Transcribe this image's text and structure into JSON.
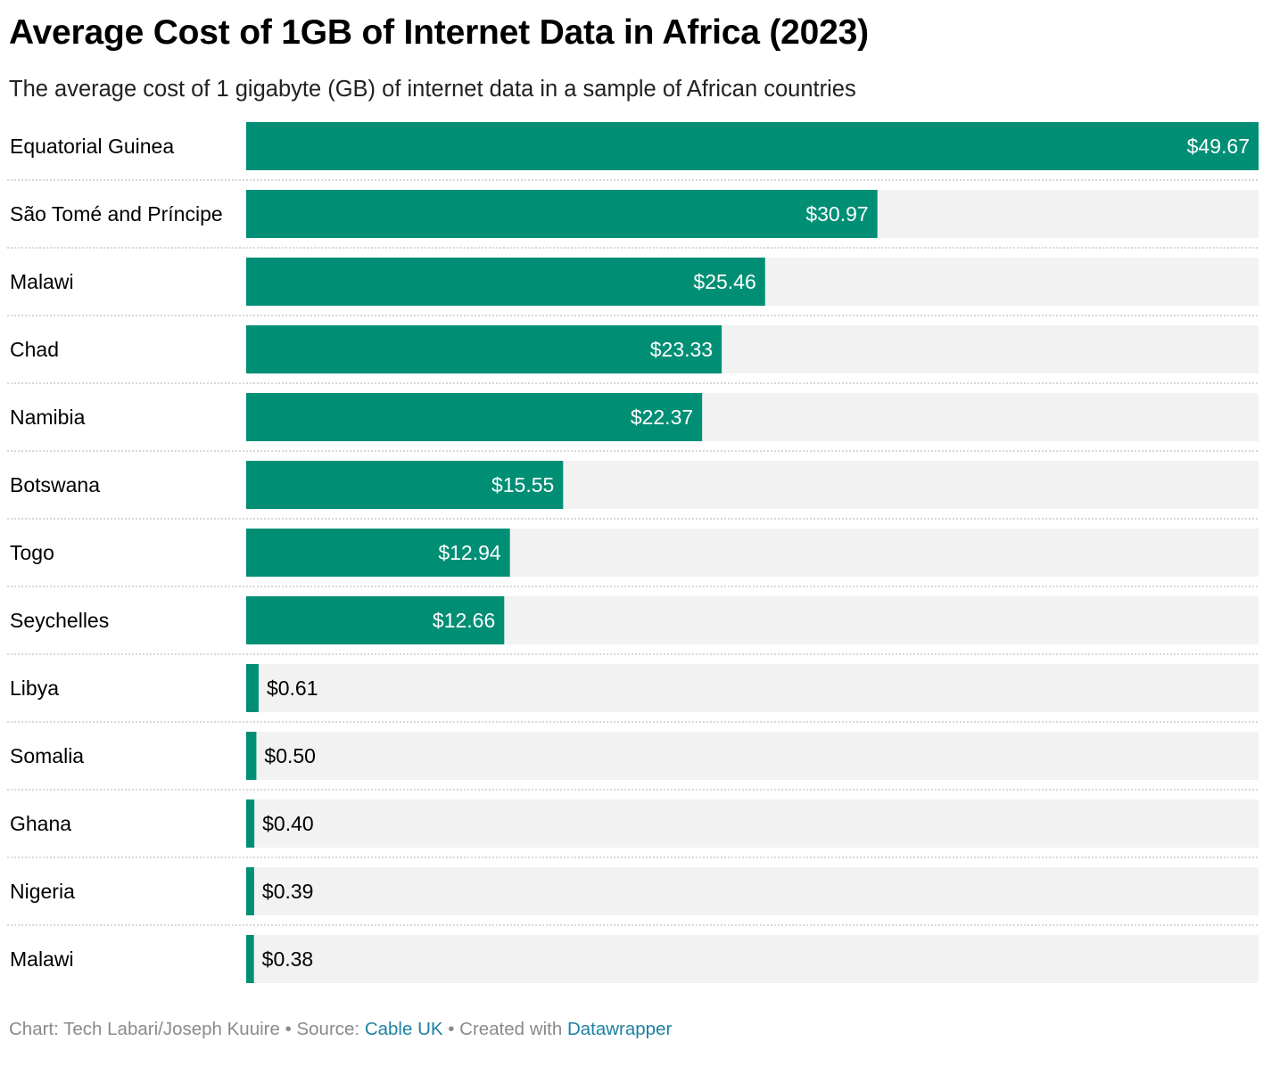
{
  "title": "Average Cost of 1GB of Internet Data in Africa (2023)",
  "subtitle": "The average cost of 1 gigabyte (GB) of internet data in a sample of African countries",
  "footer": {
    "chart_label": "Chart: Tech Labari/Joseph Kuuire",
    "separator_1": " • ",
    "source_prefix": "Source: ",
    "source_name": "Cable UK",
    "separator_2": " • ",
    "created_prefix": "Created with ",
    "tool_name": "Datawrapper"
  },
  "colors": {
    "bar": "#008f75",
    "track": "#f2f2f2",
    "separator": "#cccccc",
    "label_inside": "#ffffff",
    "label_outside": "#000000",
    "link": "#1d81a2",
    "footer_text": "#8a8a8a"
  },
  "chart_data": {
    "type": "bar",
    "orientation": "horizontal",
    "title": "Average Cost of 1GB of Internet Data in Africa (2023)",
    "subtitle": "The average cost of 1 gigabyte (GB) of internet data in a sample of African countries",
    "xlabel": "",
    "ylabel": "",
    "xlim": [
      0,
      49.67
    ],
    "grid": false,
    "legend": "none",
    "value_prefix": "$",
    "categories": [
      "Equatorial Guinea",
      "São Tomé and Príncipe",
      "Malawi",
      "Chad",
      "Namibia",
      "Botswana",
      "Togo",
      "Seychelles",
      "Libya",
      "Somalia",
      "Ghana",
      "Nigeria",
      "Malawi"
    ],
    "values": [
      49.67,
      30.97,
      25.46,
      23.33,
      22.37,
      15.55,
      12.94,
      12.66,
      0.61,
      0.5,
      0.4,
      0.39,
      0.38
    ],
    "value_labels": [
      "$49.67",
      "$30.97",
      "$25.46",
      "$23.33",
      "$22.37",
      "$15.55",
      "$12.94",
      "$12.66",
      "$0.61",
      "$0.50",
      "$0.40",
      "$0.39",
      "$0.38"
    ]
  }
}
